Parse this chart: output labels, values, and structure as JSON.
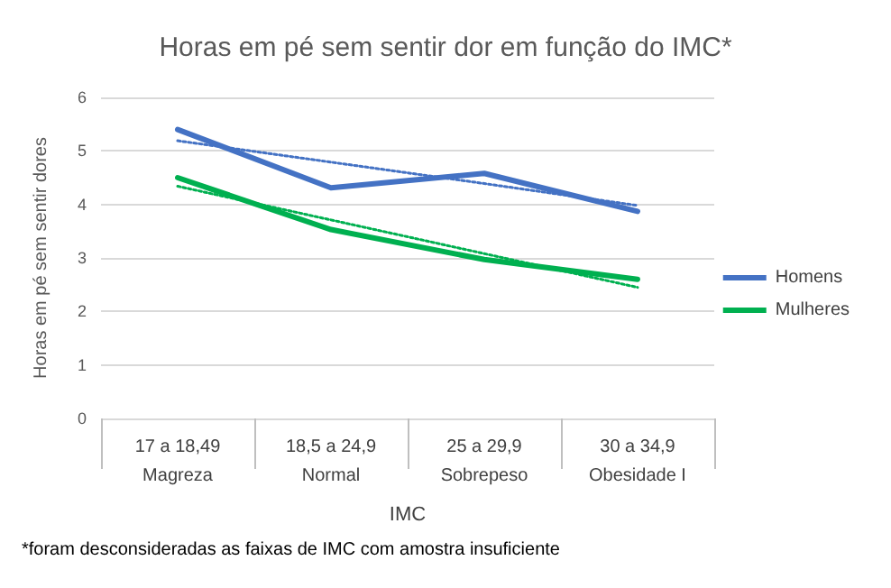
{
  "chart_data": {
    "type": "line",
    "title": "Horas em pé sem sentir dor em função do IMC*",
    "xlabel": "IMC",
    "ylabel": "Horas em pé sem sentir dores",
    "categories": [
      "17 a 18,49\nMagreza",
      "18,5 a 24,9\nNormal",
      "25 a 29,9\nSobrepeso",
      "30 a 34,9\nObesidade I"
    ],
    "series": [
      {
        "name": "Homens",
        "color": "#4472c4",
        "values": [
          5.4,
          4.31,
          4.58,
          3.87
        ]
      },
      {
        "name": "Mulheres",
        "color": "#00b050",
        "values": [
          4.5,
          3.53,
          2.97,
          2.6
        ]
      },
      {
        "color": "#4472c4",
        "line_style": "dotted",
        "values": [
          5.19,
          4.79,
          4.39,
          3.98
        ]
      },
      {
        "color": "#00b050",
        "line_style": "dotted",
        "values": [
          4.34,
          3.71,
          3.08,
          2.45
        ]
      }
    ],
    "ylim": [
      0,
      6
    ],
    "yticks": [
      0,
      1,
      2,
      3,
      4,
      5,
      6
    ],
    "grid": "y",
    "legend": "right",
    "marker": "none",
    "annotations": [
      "*foram desconsideradas as faixas de IMC com amostra insuficiente"
    ]
  }
}
